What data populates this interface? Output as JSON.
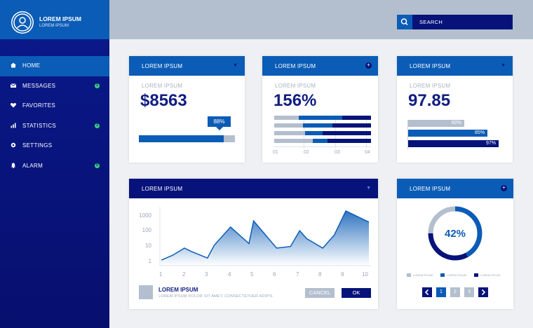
{
  "profile": {
    "name": "LOREM IPSUM",
    "subtitle": "LOREM IPSUM"
  },
  "sidebar": {
    "items": [
      {
        "label": "HOME",
        "icon": "home-icon",
        "active": true
      },
      {
        "label": "MESSAGES",
        "icon": "envelope-icon",
        "badge": "1"
      },
      {
        "label": "FAVORITES",
        "icon": "heart-icon"
      },
      {
        "label": "STATISTICS",
        "icon": "bar-chart-icon",
        "badge": "3"
      },
      {
        "label": "SETTINGS",
        "icon": "gear-icon"
      },
      {
        "label": "ALARM",
        "icon": "bell-icon",
        "badge": "6"
      }
    ]
  },
  "search": {
    "label": "SEARCH"
  },
  "card1": {
    "title": "LOREM IPSUM",
    "subtitle": "LOREM IPSUM",
    "value": "$8563",
    "progress_label": "88%",
    "progress": 0.88
  },
  "card2": {
    "title": "LOREM IPSUM",
    "subtitle": "LOREM IPSUM",
    "value": "156%",
    "ticks": [
      "01",
      "02",
      "03",
      "04"
    ],
    "rows": [
      [
        0.25,
        0.45,
        0.3
      ],
      [
        0.3,
        0.3,
        0.4
      ],
      [
        0.32,
        0.18,
        0.5
      ],
      [
        0.4,
        0.15,
        0.45
      ]
    ]
  },
  "card3": {
    "title": "LOREM IPSUM",
    "subtitle": "LOREM IPSUM",
    "value": "97.85",
    "bars": [
      {
        "label": "60%",
        "value": 0.6
      },
      {
        "label": "85%",
        "value": 0.85
      },
      {
        "label": "97%",
        "value": 0.97
      }
    ]
  },
  "chart_card": {
    "title": "LOREM IPSUM",
    "legend_title": "LOREM IPSUM",
    "legend_desc": "LOREM IPSUM DOLOR SIT AMET, CONSECTETUER ADIPIS",
    "cancel_label": "CANCEL",
    "ok_label": "OK"
  },
  "chart_data": {
    "type": "area",
    "x": [
      1,
      1.5,
      2,
      2.3,
      3,
      3.3,
      4,
      4.8,
      5,
      6,
      6.6,
      7,
      7.3,
      8,
      8.5,
      9,
      10
    ],
    "y": [
      1.5,
      3,
      8,
      5,
      2,
      12,
      150,
      15,
      350,
      8,
      10,
      90,
      30,
      8,
      50,
      1400,
      300
    ],
    "x_ticks": [
      "1",
      "2",
      "3",
      "4",
      "5",
      "6",
      "7",
      "8",
      "9",
      "10"
    ],
    "y_ticks": [
      "1",
      "10",
      "100",
      "1000"
    ],
    "y_scale": "log",
    "xlim": [
      1,
      10
    ],
    "ylim": [
      0.7,
      2500
    ]
  },
  "donut_card": {
    "title": "LOREM IPSUM",
    "percent_label": "42%",
    "segments": [
      {
        "value": 0.42,
        "color": "#0b5cb6"
      },
      {
        "value": 0.33,
        "color": "#07137a"
      },
      {
        "value": 0.25,
        "color": "#b3bfce"
      }
    ],
    "legend": [
      {
        "label": "LOREM IPSUM",
        "color": "#b3bfce"
      },
      {
        "label": "LOREM IPSUM",
        "color": "#0b5cb6"
      },
      {
        "label": "LOREM IPSUM",
        "color": "#07137a"
      }
    ],
    "pages": [
      "1",
      "2",
      "3"
    ]
  },
  "colors": {
    "navy": "#07137a",
    "blue": "#0b5cb6",
    "grey": "#b3bfce",
    "accent_green": "#35d17a"
  }
}
